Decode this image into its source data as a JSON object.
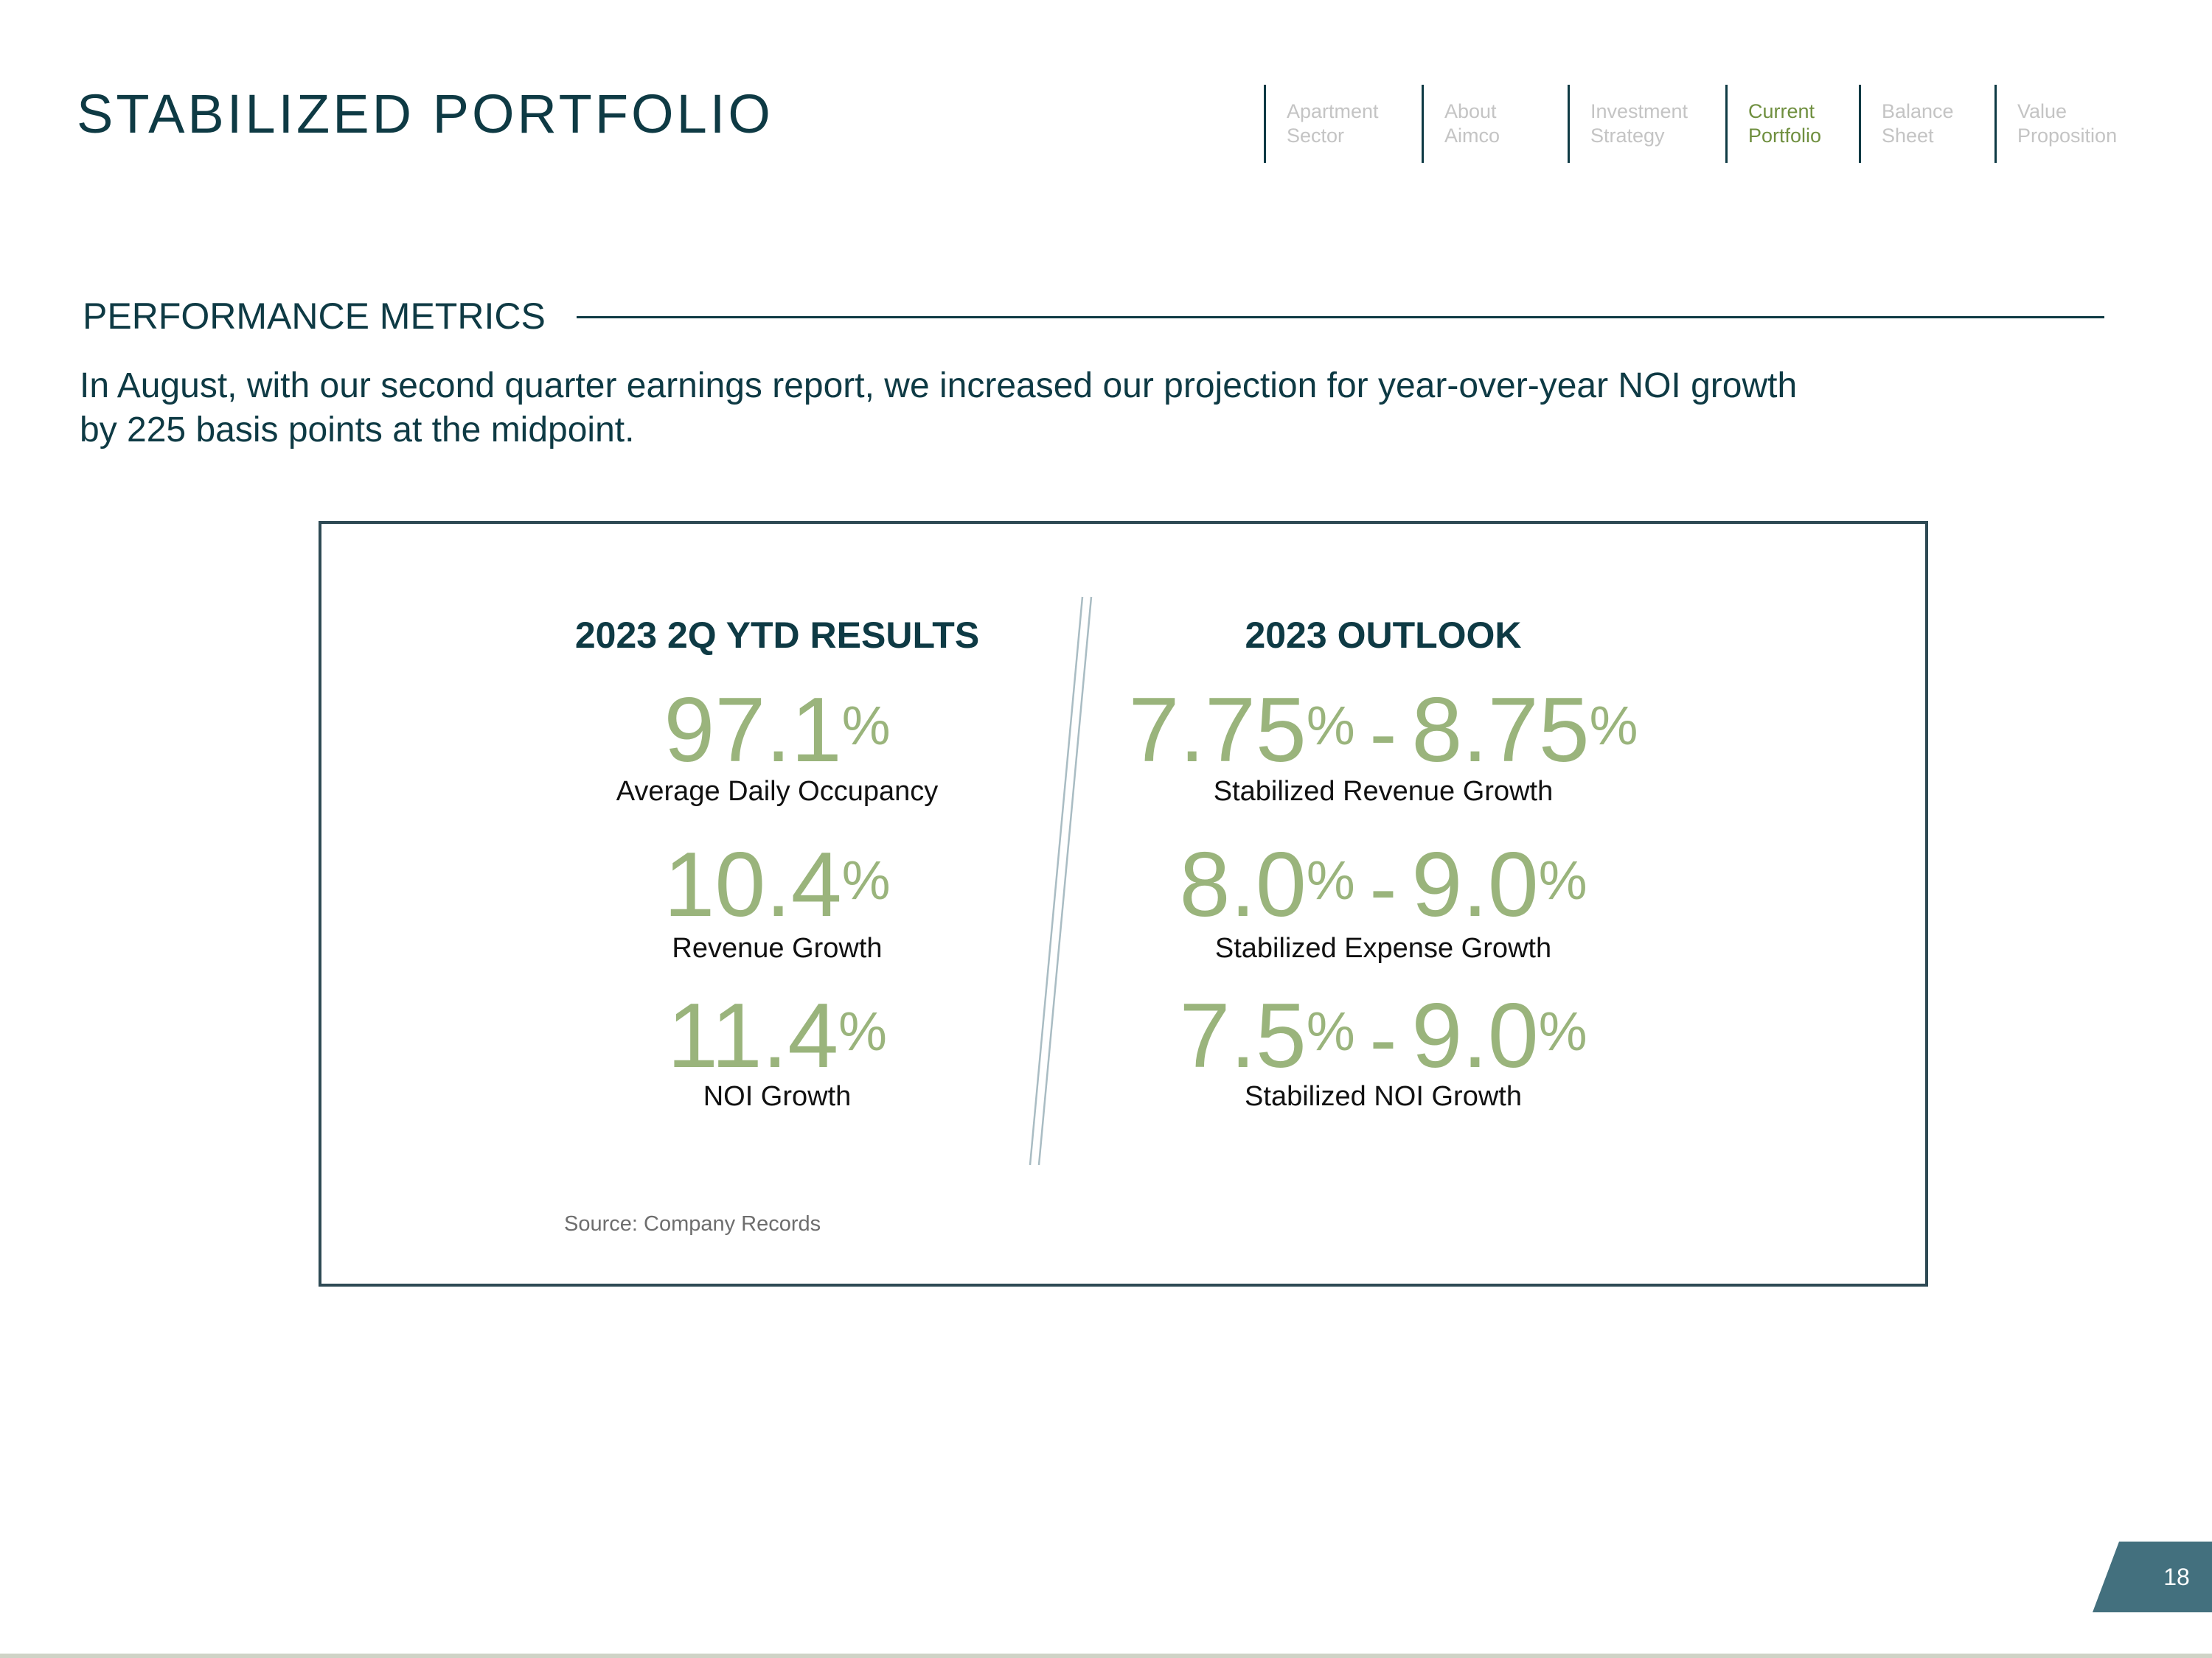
{
  "header": {
    "title": "STABILIZED PORTFOLIO"
  },
  "nav": {
    "items": [
      {
        "line1": "Apartment",
        "line2": "Sector",
        "active": false
      },
      {
        "line1": "About",
        "line2": "Aimco",
        "active": false
      },
      {
        "line1": "Investment",
        "line2": "Strategy",
        "active": false
      },
      {
        "line1": "Current",
        "line2": "Portfolio",
        "active": true
      },
      {
        "line1": "Balance",
        "line2": "Sheet",
        "active": false
      },
      {
        "line1": "Value",
        "line2": "Proposition",
        "active": false
      }
    ]
  },
  "section": {
    "heading": "PERFORMANCE METRICS",
    "intro_line1": "In August, with our second quarter earnings report, we increased our projection for year-over-year NOI growth",
    "intro_line2": "by 225 basis points at the midpoint."
  },
  "results": {
    "heading": "2023 2Q YTD RESULTS",
    "metrics": [
      {
        "value": "97.1",
        "unit": "%",
        "label": "Average Daily Occupancy"
      },
      {
        "value": "10.4",
        "unit": "%",
        "label": "Revenue Growth"
      },
      {
        "value": "11.4",
        "unit": "%",
        "label": "NOI Growth"
      }
    ]
  },
  "outlook": {
    "heading": "2023 OUTLOOK",
    "metrics": [
      {
        "low": "7.75",
        "high": "8.75",
        "unit": "%",
        "separator": "-",
        "label": "Stabilized Revenue Growth"
      },
      {
        "low": "8.0",
        "high": "9.0",
        "unit": "%",
        "separator": "-",
        "label": "Stabilized Expense Growth"
      },
      {
        "low": "7.5",
        "high": "9.0",
        "unit": "%",
        "separator": "-",
        "label": "Stabilized NOI Growth"
      }
    ]
  },
  "source": "Source: Company Records",
  "page_number": "18",
  "colors": {
    "primary": "#0e3a44",
    "accent_green": "#9ab47c",
    "nav_active": "#6f8f3f",
    "nav_inactive": "#c4c4c4",
    "badge": "#43707e"
  }
}
